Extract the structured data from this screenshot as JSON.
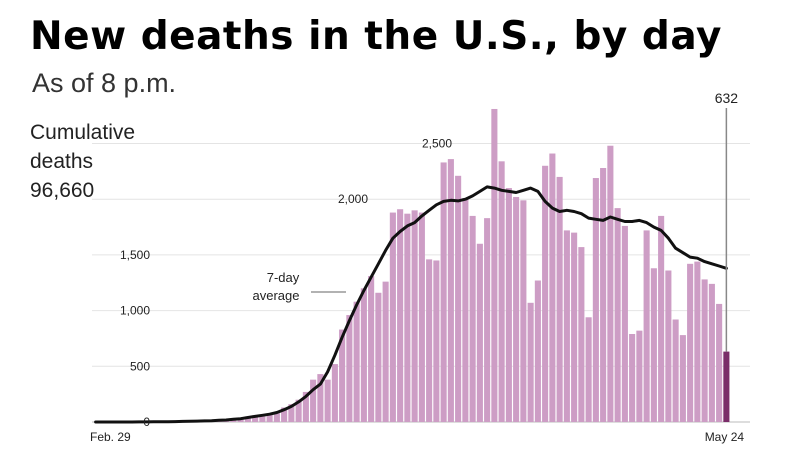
{
  "header": {
    "title": "New deaths in the U.S., by day",
    "subtitle": "As of 8 p.m.",
    "cumulative_label_line1": "Cumulative",
    "cumulative_label_line2": "deaths",
    "cumulative_value": "96,660"
  },
  "colors": {
    "bar": "#cd9dc5",
    "bar_last": "#7a2c68",
    "avg_line": "#111111",
    "grid": "#e4e4e4"
  },
  "chart_data": {
    "type": "bar",
    "title": "New deaths in the U.S., by day",
    "xlabel": "",
    "ylabel": "",
    "ylim": [
      0,
      2800
    ],
    "y_ticks": [
      "0",
      "500",
      "1,000",
      "1,500"
    ],
    "inline_labels": [
      "2,000",
      "2,500"
    ],
    "x_tick_labels": [
      "Feb. 29",
      "May 24"
    ],
    "grid": true,
    "last_value_label": "632",
    "series": [
      {
        "type": "bar",
        "values": [
          0,
          1,
          0,
          0,
          0,
          1,
          1,
          2,
          2,
          3,
          4,
          5,
          6,
          8,
          10,
          12,
          14,
          16,
          20,
          30,
          40,
          50,
          60,
          65,
          70,
          80,
          130,
          160,
          200,
          270,
          380,
          430,
          380,
          520,
          830,
          960,
          1080,
          1200,
          1310,
          1160,
          1260,
          1880,
          1910,
          1870,
          1900,
          1880,
          1460,
          1450,
          2330,
          2360,
          2210,
          2010,
          1850,
          1600,
          1830,
          2810,
          2340,
          2100,
          2020,
          1990,
          1070,
          1270,
          2300,
          2410,
          2200,
          1720,
          1700,
          1570,
          940,
          2190,
          2280,
          2480,
          1920,
          1760,
          790,
          820,
          1720,
          1380,
          1850,
          1360,
          920,
          780,
          1420,
          1440,
          1280,
          1240,
          1060,
          632
        ]
      },
      {
        "type": "line",
        "name": "7-day average",
        "values": [
          0,
          0,
          0,
          0,
          0,
          0,
          1,
          1,
          2,
          2,
          3,
          4,
          5,
          6,
          8,
          10,
          12,
          15,
          18,
          24,
          30,
          40,
          50,
          60,
          70,
          85,
          110,
          140,
          180,
          230,
          290,
          340,
          450,
          600,
          760,
          910,
          1050,
          1180,
          1300,
          1420,
          1540,
          1650,
          1710,
          1760,
          1790,
          1850,
          1900,
          1950,
          1980,
          1990,
          1985,
          2000,
          2030,
          2070,
          2110,
          2100,
          2080,
          2070,
          2060,
          2080,
          2100,
          2070,
          1980,
          1920,
          1890,
          1900,
          1890,
          1870,
          1830,
          1820,
          1810,
          1840,
          1820,
          1800,
          1800,
          1810,
          1790,
          1750,
          1720,
          1650,
          1560,
          1520,
          1480,
          1470,
          1440,
          1420,
          1400,
          1380
        ]
      }
    ],
    "annotations": [
      "7-day average",
      "632"
    ]
  }
}
